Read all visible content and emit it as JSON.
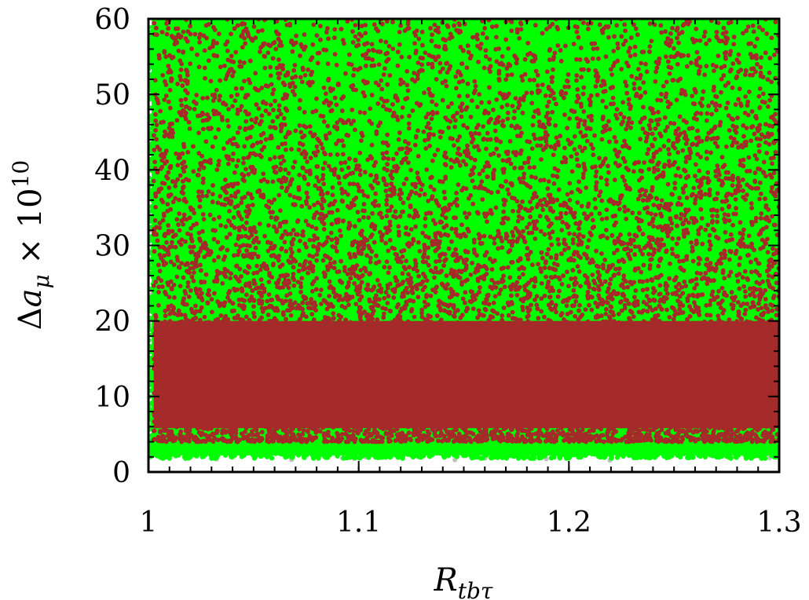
{
  "chart_data": {
    "type": "scatter",
    "title": "",
    "xlabel": "R_tbτ",
    "ylabel": "Δa_μ × 10^10",
    "xlim": [
      1.0,
      1.3
    ],
    "ylim": [
      0,
      60
    ],
    "x_ticks": [
      1.0,
      1.1,
      1.2,
      1.3
    ],
    "x_tick_labels": [
      "1",
      "1.1",
      "1.2",
      "1.3"
    ],
    "y_ticks": [
      0,
      10,
      20,
      30,
      40,
      50,
      60
    ],
    "y_tick_labels": [
      "0",
      "10",
      "20",
      "30",
      "40",
      "50",
      "60"
    ],
    "grid": false,
    "legend": "none",
    "series": [
      {
        "color": "#c0c0c0",
        "description_region": {
          "x_range": [
            1.0,
            1.3
          ],
          "y_range": [
            1.5,
            60
          ]
        }
      },
      {
        "color": "#00ff00",
        "description_region": {
          "x_range": [
            1.0,
            1.3
          ],
          "y_range": [
            1.8,
            60
          ]
        }
      },
      {
        "color": "#a52a2a",
        "description_region": {
          "x_range": [
            1.001,
            1.3
          ],
          "y_range": [
            3.5,
            60
          ]
        }
      }
    ]
  }
}
